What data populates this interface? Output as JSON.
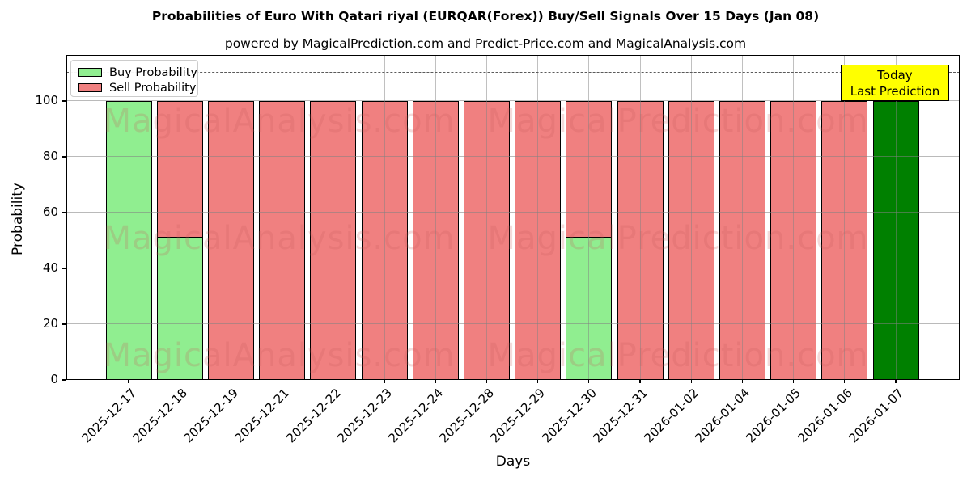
{
  "chart_data": {
    "type": "bar",
    "stacked": true,
    "title": "Probabilities of Euro With Qatari riyal (EURQAR(Forex)) Buy/Sell Signals Over 15 Days (Jan 08)",
    "subtitle": "powered by MagicalPrediction.com and Predict-Price.com and MagicalAnalysis.com",
    "xlabel": "Days",
    "ylabel": "Probability",
    "categories": [
      "2025-12-17",
      "2025-12-18",
      "2025-12-19",
      "2025-12-21",
      "2025-12-22",
      "2025-12-23",
      "2025-12-24",
      "2025-12-28",
      "2025-12-29",
      "2025-12-30",
      "2025-12-31",
      "2026-01-02",
      "2026-01-04",
      "2026-01-05",
      "2026-01-06",
      "2026-01-07"
    ],
    "series": [
      {
        "name": "Buy Probability",
        "color": "#90EE90",
        "values": [
          100,
          51,
          0,
          0,
          0,
          0,
          0,
          0,
          0,
          51,
          0,
          0,
          0,
          0,
          0,
          100
        ]
      },
      {
        "name": "Sell Probability",
        "color": "#F08080",
        "values": [
          0,
          49,
          100,
          100,
          100,
          100,
          100,
          100,
          100,
          49,
          100,
          100,
          100,
          100,
          100,
          0
        ]
      }
    ],
    "today_index": 15,
    "today_bar_color": "#008000",
    "bar_edge_color": "#000000",
    "yticks": [
      0,
      20,
      40,
      60,
      80,
      100
    ],
    "ylim": [
      0,
      116.5
    ],
    "dashed_line_y": 110,
    "grid": true,
    "legend_position": "upper-left",
    "annotation": {
      "lines": [
        "Today",
        "Last Prediction"
      ],
      "bg": "#FFFF00"
    },
    "watermarks": [
      "MagicalAnalysis.com",
      "MagicalPrediction.com"
    ]
  }
}
